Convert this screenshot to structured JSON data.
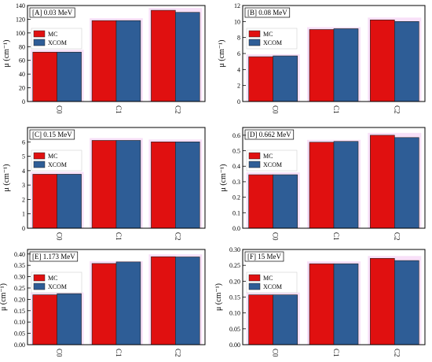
{
  "colors": {
    "mc": "#e01010",
    "xcom": "#2e5d96",
    "glow": "#f3c7f3"
  },
  "chart_data": [
    {
      "type": "bar",
      "label": "[A] 0.03 MeV",
      "ylabel": "μ (cm⁻¹)",
      "categories": [
        "C0",
        "C1",
        "C2"
      ],
      "ylim": [
        0,
        140
      ],
      "ticks": [
        0,
        20,
        40,
        60,
        80,
        100,
        120,
        140
      ],
      "series": [
        {
          "name": "MC",
          "values": [
            72,
            118,
            133
          ]
        },
        {
          "name": "XCOM",
          "values": [
            72,
            118,
            130
          ]
        }
      ],
      "legend": "top-left",
      "grid": false
    },
    {
      "type": "bar",
      "label": "[B] 0.08 MeV",
      "ylabel": "μ (cm⁻¹)",
      "categories": [
        "C0",
        "C1",
        "C2"
      ],
      "ylim": [
        0,
        12
      ],
      "ticks": [
        0,
        2,
        4,
        6,
        8,
        10,
        12
      ],
      "series": [
        {
          "name": "MC",
          "values": [
            5.6,
            9.0,
            10.2
          ]
        },
        {
          "name": "XCOM",
          "values": [
            5.7,
            9.1,
            10.0
          ]
        }
      ],
      "legend": "top-left",
      "grid": false
    },
    {
      "type": "bar",
      "label": "[C] 0.15 MeV",
      "ylabel": "μ (cm⁻¹)",
      "categories": [
        "C0",
        "C1",
        "C2"
      ],
      "ylim": [
        0,
        7
      ],
      "ticks": [
        0,
        1,
        2,
        3,
        4,
        5,
        6
      ],
      "series": [
        {
          "name": "MC",
          "values": [
            3.75,
            6.1,
            6.0
          ]
        },
        {
          "name": "XCOM",
          "values": [
            3.75,
            6.1,
            6.0
          ]
        }
      ],
      "legend": "top-left",
      "grid": false
    },
    {
      "type": "bar",
      "label": "[D] 0.662 MeV",
      "ylabel": "μ (cm⁻¹)",
      "categories": [
        "C0",
        "C1",
        "C2"
      ],
      "ylim": [
        0,
        0.65
      ],
      "ticks": [
        0.0,
        0.1,
        0.2,
        0.3,
        0.4,
        0.5,
        0.6
      ],
      "series": [
        {
          "name": "MC",
          "values": [
            0.345,
            0.555,
            0.6
          ]
        },
        {
          "name": "XCOM",
          "values": [
            0.345,
            0.56,
            0.585
          ]
        }
      ],
      "legend": "top-left",
      "grid": false
    },
    {
      "type": "bar",
      "label": "[E] 1.173 MeV",
      "ylabel": "μ (cm⁻¹)",
      "categories": [
        "C0",
        "C1",
        "C2"
      ],
      "ylim": [
        0,
        0.42
      ],
      "ticks": [
        0.0,
        0.05,
        0.1,
        0.15,
        0.2,
        0.25,
        0.3,
        0.35,
        0.4
      ],
      "series": [
        {
          "name": "MC",
          "values": [
            0.22,
            0.358,
            0.388
          ]
        },
        {
          "name": "XCOM",
          "values": [
            0.225,
            0.365,
            0.387
          ]
        }
      ],
      "legend": "top-left",
      "grid": false
    },
    {
      "type": "bar",
      "label": "[F] 15 MeV",
      "ylabel": "μ (cm⁻¹)",
      "categories": [
        "C0",
        "C1",
        "C2"
      ],
      "ylim": [
        0,
        0.3
      ],
      "ticks": [
        0.0,
        0.05,
        0.1,
        0.15,
        0.2,
        0.25,
        0.3
      ],
      "series": [
        {
          "name": "MC",
          "values": [
            0.157,
            0.255,
            0.272
          ]
        },
        {
          "name": "XCOM",
          "values": [
            0.157,
            0.255,
            0.265
          ]
        }
      ],
      "legend": "top-left",
      "grid": false
    }
  ]
}
